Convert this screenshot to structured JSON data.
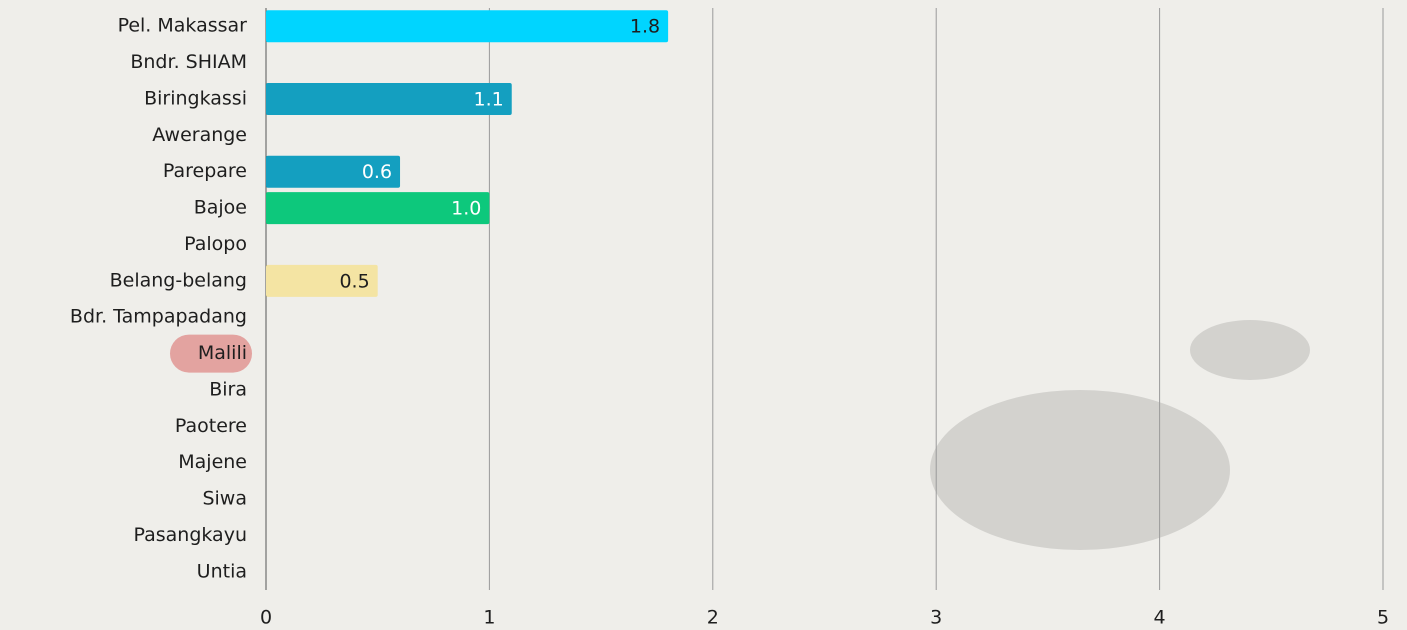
{
  "chart_data": {
    "type": "barh",
    "categories": [
      "Pel. Makassar",
      "Bndr. SHIAM",
      "Biringkassi",
      "Awerange",
      "Parepare",
      "Bajoe",
      "Palopo",
      "Belang-belang",
      "Bdr. Tampapadang",
      "Malili",
      "Bira",
      "Paotere",
      "Majene",
      "Siwa",
      "Pasangkayu",
      "Untia"
    ],
    "values": [
      1.8,
      null,
      1.1,
      null,
      0.6,
      1.0,
      null,
      0.5,
      null,
      null,
      null,
      null,
      null,
      null,
      null,
      null
    ],
    "value_labels": [
      "1.8",
      null,
      "1.1",
      null,
      "0.6",
      "1.0",
      null,
      "0.5",
      null,
      null,
      null,
      null,
      null,
      null,
      null,
      null
    ],
    "colors": [
      "#00d5ff",
      null,
      "#149fc0",
      null,
      "#149fc0",
      "#0dc87c",
      null,
      "#f4e4a3",
      null,
      null,
      null,
      null,
      null,
      null,
      null,
      null
    ],
    "highlight_index": 9,
    "xlim": [
      0,
      5
    ],
    "xticks": [
      0,
      1,
      2,
      3,
      4,
      5
    ],
    "grid": true
  }
}
